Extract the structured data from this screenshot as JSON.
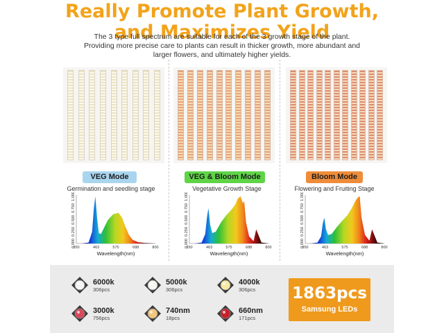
{
  "headline": {
    "line1": "Really Promote Plant Growth,",
    "line2": "and Maximizes Yield"
  },
  "description": {
    "line1": "The 3 type full spectrum are suitable for each of the 3 growth stage of the plant.",
    "line2": "Providing more precise care to plants can result in thicker growth, more abundant and",
    "line3": "larger flowers, and ultimately higher yields."
  },
  "modes": [
    {
      "badge": "VEG Mode",
      "badge_color": "#a9d5ee",
      "stage": "Germination and seedling stage",
      "bar_style": "veg",
      "bar_count": 9
    },
    {
      "badge": "VEG & Bloom Mode",
      "badge_color": "#5fd447",
      "stage": "Vegetative Growth Stage",
      "bar_style": "vb",
      "bar_count": 10
    },
    {
      "badge": "Bloom Mode",
      "badge_color": "#ef8c3a",
      "stage": "Flowering and Fruiting Stage",
      "bar_style": "bl",
      "bar_count": 11
    }
  ],
  "spectrum_axis": {
    "y_ticks": [
      "0.000",
      "0.250",
      "0.500",
      "0.750",
      "1.000"
    ],
    "x_ticks": [
      "350",
      "463",
      "575",
      "688",
      "800"
    ],
    "x_label": "Wavelength(nm)"
  },
  "chart_data": [
    {
      "type": "area",
      "title": "VEG Mode",
      "xlabel": "Wavelength(nm)",
      "ylabel": "",
      "xlim": [
        350,
        800
      ],
      "ylim": [
        0,
        1
      ],
      "x": [
        380,
        420,
        440,
        450,
        458,
        468,
        478,
        490,
        510,
        530,
        560,
        590,
        610,
        630,
        650,
        670,
        700,
        740,
        800
      ],
      "series": [
        {
          "values": [
            0,
            0.02,
            0.25,
            0.75,
            1.0,
            0.55,
            0.22,
            0.2,
            0.35,
            0.5,
            0.62,
            0.65,
            0.55,
            0.35,
            0.18,
            0.08,
            0.03,
            0.01,
            0
          ]
        }
      ]
    },
    {
      "type": "area",
      "title": "VEG & Bloom Mode",
      "xlabel": "Wavelength(nm)",
      "ylabel": "",
      "xlim": [
        350,
        800
      ],
      "ylim": [
        0,
        1
      ],
      "x": [
        380,
        420,
        440,
        450,
        458,
        468,
        480,
        500,
        530,
        560,
        590,
        610,
        625,
        640,
        655,
        662,
        672,
        690,
        715,
        730,
        760,
        800
      ],
      "series": [
        {
          "values": [
            0,
            0.02,
            0.2,
            0.55,
            0.75,
            0.4,
            0.22,
            0.25,
            0.45,
            0.6,
            0.72,
            0.82,
            0.95,
            1.0,
            0.85,
            0.9,
            0.45,
            0.15,
            0.05,
            0.3,
            0.02,
            0
          ]
        }
      ]
    },
    {
      "type": "area",
      "title": "Bloom Mode",
      "xlabel": "Wavelength(nm)",
      "ylabel": "",
      "xlim": [
        350,
        800
      ],
      "ylim": [
        0,
        1
      ],
      "x": [
        380,
        420,
        440,
        450,
        458,
        468,
        480,
        500,
        530,
        560,
        590,
        615,
        635,
        650,
        660,
        670,
        690,
        715,
        730,
        760,
        800
      ],
      "series": [
        {
          "values": [
            0,
            0.02,
            0.15,
            0.42,
            0.55,
            0.3,
            0.18,
            0.2,
            0.35,
            0.48,
            0.6,
            0.75,
            0.9,
            0.98,
            1.0,
            0.55,
            0.18,
            0.06,
            0.3,
            0.02,
            0
          ]
        }
      ]
    }
  ],
  "leds": [
    {
      "label": "6000k",
      "count": "306pcs",
      "color": "#f4f4f4"
    },
    {
      "label": "5000k",
      "count": "306pcs",
      "color": "#f7f7f1"
    },
    {
      "label": "4000k",
      "count": "306pcs",
      "color": "#f8e9a4"
    },
    {
      "label": "3000k",
      "count": "756pcs",
      "color": "#d94a5a"
    },
    {
      "label": "740nm",
      "count": "18pcs",
      "color": "#f1c57c"
    },
    {
      "label": "660nm",
      "count": "171pcs",
      "color": "#c8212b"
    }
  ],
  "total": {
    "count": "1863pcs",
    "label": "Samsung LEDs",
    "color": "#ef9a1d"
  }
}
